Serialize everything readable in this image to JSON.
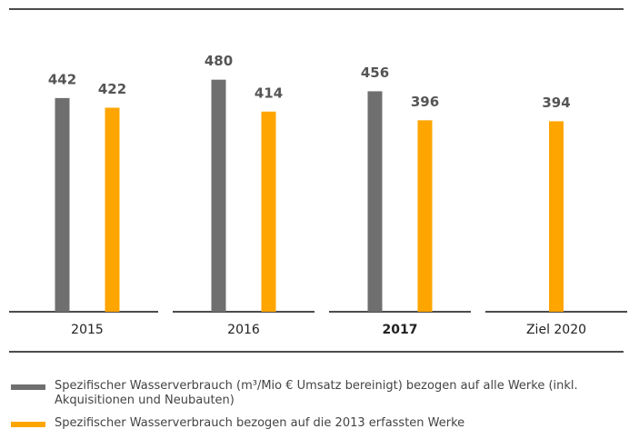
{
  "chart_data": {
    "type": "bar",
    "categories": [
      "2015",
      "2016",
      "2017",
      "Ziel 2020"
    ],
    "highlight": "2017",
    "series": [
      {
        "name": "Spezifischer Wasserverbrauch (m³/Mio € Umsatz bereinigt) bezogen auf alle Werke (inkl. Akquisitionen und Neubauten)",
        "color": "#6f6f6f",
        "values": [
          442,
          480,
          456,
          null
        ]
      },
      {
        "name": "Spezifischer Wasserverbrauch bezogen auf die 2013 erfassten Werke",
        "color": "#ffa500",
        "values": [
          422,
          414,
          396,
          394
        ]
      }
    ],
    "ylim": [
      0,
      626
    ]
  }
}
